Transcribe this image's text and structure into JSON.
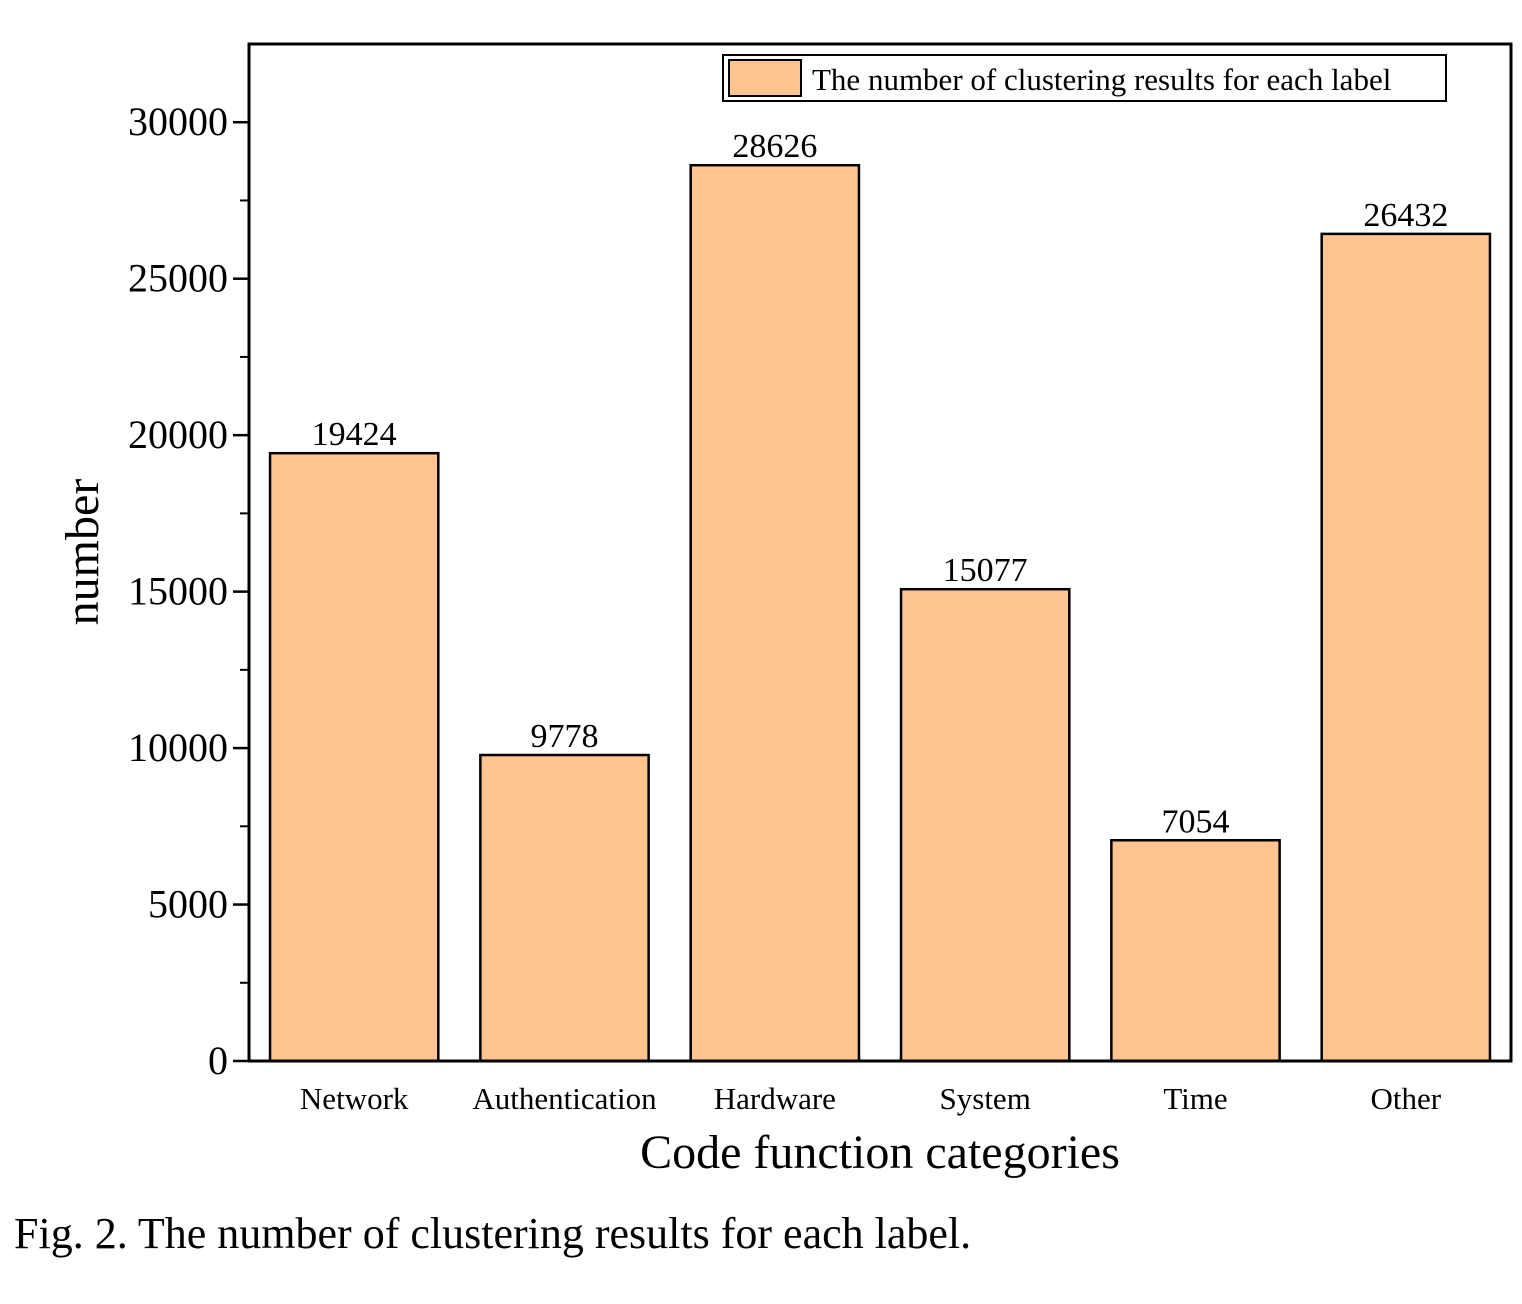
{
  "chart_data": {
    "type": "bar",
    "categories": [
      "Network",
      "Authentication",
      "Hardware",
      "System",
      "Time",
      "Other"
    ],
    "series": [
      {
        "name": "The number of clustering results for each label",
        "values": [
          19424,
          9778,
          28626,
          15077,
          7054,
          26432
        ]
      }
    ],
    "xlabel": "Code function categories",
    "ylabel": "number",
    "ylim": [
      0,
      32500
    ],
    "yticks": [
      0,
      5000,
      10000,
      15000,
      20000,
      25000,
      30000
    ],
    "ytick_labels": [
      "0",
      "5000",
      "10000",
      "15000",
      "20000",
      "25000",
      "30000"
    ],
    "data_labels": [
      "19424",
      "9778",
      "28626",
      "15077",
      "7054",
      "26432"
    ],
    "bar_color": "#FFC490",
    "legend": {
      "label": "The number of clustering results for each label",
      "position": "top-right"
    },
    "grid": false
  },
  "caption": "Fig. 2. The number of clustering results for each label."
}
